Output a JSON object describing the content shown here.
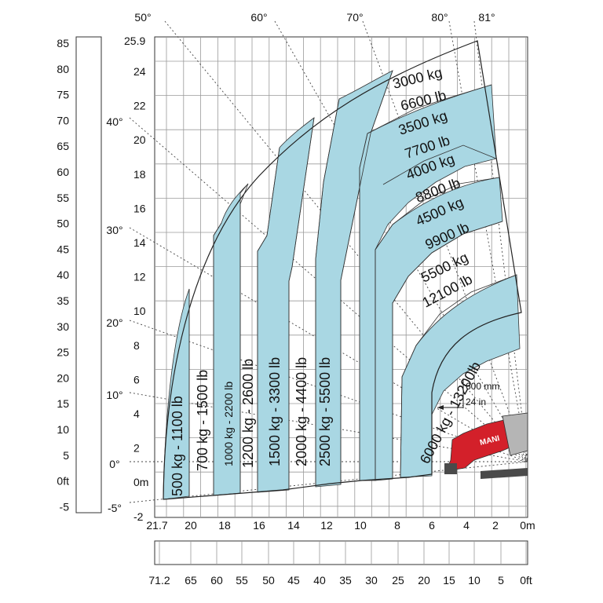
{
  "colors": {
    "band": "#a9d7e3",
    "machine_red": "#d3202a",
    "machine_gray": "#4a4a4a"
  },
  "axes": {
    "y_m_ticks": [
      "24",
      "22",
      "20",
      "18",
      "16",
      "14",
      "12",
      "10",
      "8",
      "6",
      "4",
      "2",
      "0m",
      "-2"
    ],
    "y_m_top": "25.9",
    "y_ft_ticks": [
      "85",
      "80",
      "75",
      "70",
      "65",
      "60",
      "55",
      "50",
      "45",
      "40",
      "35",
      "30",
      "25",
      "20",
      "15",
      "10",
      "5",
      "0ft",
      "-5"
    ],
    "x_m_ticks": [
      "21.7",
      "20",
      "18",
      "16",
      "14",
      "12",
      "10",
      "8",
      "6",
      "4",
      "2",
      "0m"
    ],
    "x_ft_ticks": [
      "71.2",
      "65",
      "60",
      "55",
      "50",
      "45",
      "40",
      "35",
      "30",
      "25",
      "20",
      "15",
      "10",
      "5",
      "0ft"
    ],
    "angles_top": [
      "50°",
      "60°",
      "70°",
      "80°",
      "81°"
    ],
    "angles_left": [
      "40°",
      "30°",
      "20°",
      "10°",
      "0°",
      "-5°"
    ]
  },
  "chart_data": {
    "type": "load_chart",
    "x_unit": "m",
    "y_unit": "m",
    "xlim": [
      21.7,
      0
    ],
    "ylim": [
      -2,
      25.9
    ],
    "max_angle": "81°",
    "vertical_bands": [
      {
        "label": "500 kg - 1100 lb",
        "x_outer": 21.0,
        "x_inner": 19.3
      },
      {
        "label": "700 kg - 1500 lb",
        "x_outer": 19.3,
        "x_inner": 18.0
      },
      {
        "label": "1000 kg - 2200 lb",
        "x_outer": 18.0,
        "x_inner": 17.0
      },
      {
        "label": "1200 kg - 2600 lb",
        "x_outer": 17.0,
        "x_inner": 15.7
      },
      {
        "label": "1500 kg - 3300 lb",
        "x_outer": 15.7,
        "x_inner": 14.0
      },
      {
        "label": "2000 kg - 4400 lb",
        "x_outer": 14.0,
        "x_inner": 12.7
      },
      {
        "label": "2500 kg - 5500 lb",
        "x_outer": 12.7,
        "x_inner": 11.1
      },
      {
        "label": "3000 kg - 6600 lb"
      },
      {
        "label": "3500 kg - 7700 lb"
      },
      {
        "label": "4000 kg - 8800 lb"
      },
      {
        "label": "4500 kg - 9900 lb"
      },
      {
        "label": "5500 kg - 12100 lb"
      },
      {
        "label": "6000 kg - 13200lb"
      }
    ],
    "top_labels": [
      [
        "3000 kg",
        "6600 lb"
      ],
      [
        "3500 kg",
        "7700 lb"
      ],
      [
        "4000 kg",
        "8800 lb"
      ],
      [
        "4500 kg",
        "9900 lb"
      ],
      [
        "5500 kg",
        "12100 lb"
      ]
    ],
    "front_overhang": {
      "metric": "600 mm",
      "imperial": "24 in"
    }
  },
  "labels": {
    "zone_500": "500 kg - 1100 lb",
    "zone_700": "700 kg - 1500 lb",
    "zone_1000": "1000 kg - 2200 lb",
    "zone_1200": "1200 kg - 2600 lb",
    "zone_1500": "1500 kg - 3300 lb",
    "zone_2000": "2000 kg - 4400 lb",
    "zone_2500": "2500 kg - 5500 lb",
    "zone_6000": "6000 kg - 13200lb",
    "t3000a": "3000 kg",
    "t3000b": "6600 lb",
    "t3500a": "3500 kg",
    "t3500b": "7700 lb",
    "t4000a": "4000 kg",
    "t4000b": "8800 lb",
    "t4500a": "4500 kg",
    "t4500b": "9900 lb",
    "t5500a": "5500 kg",
    "t5500b": "12100 lb",
    "note_mm": "600 mm",
    "note_in": "24 in",
    "brand": "MANI"
  }
}
